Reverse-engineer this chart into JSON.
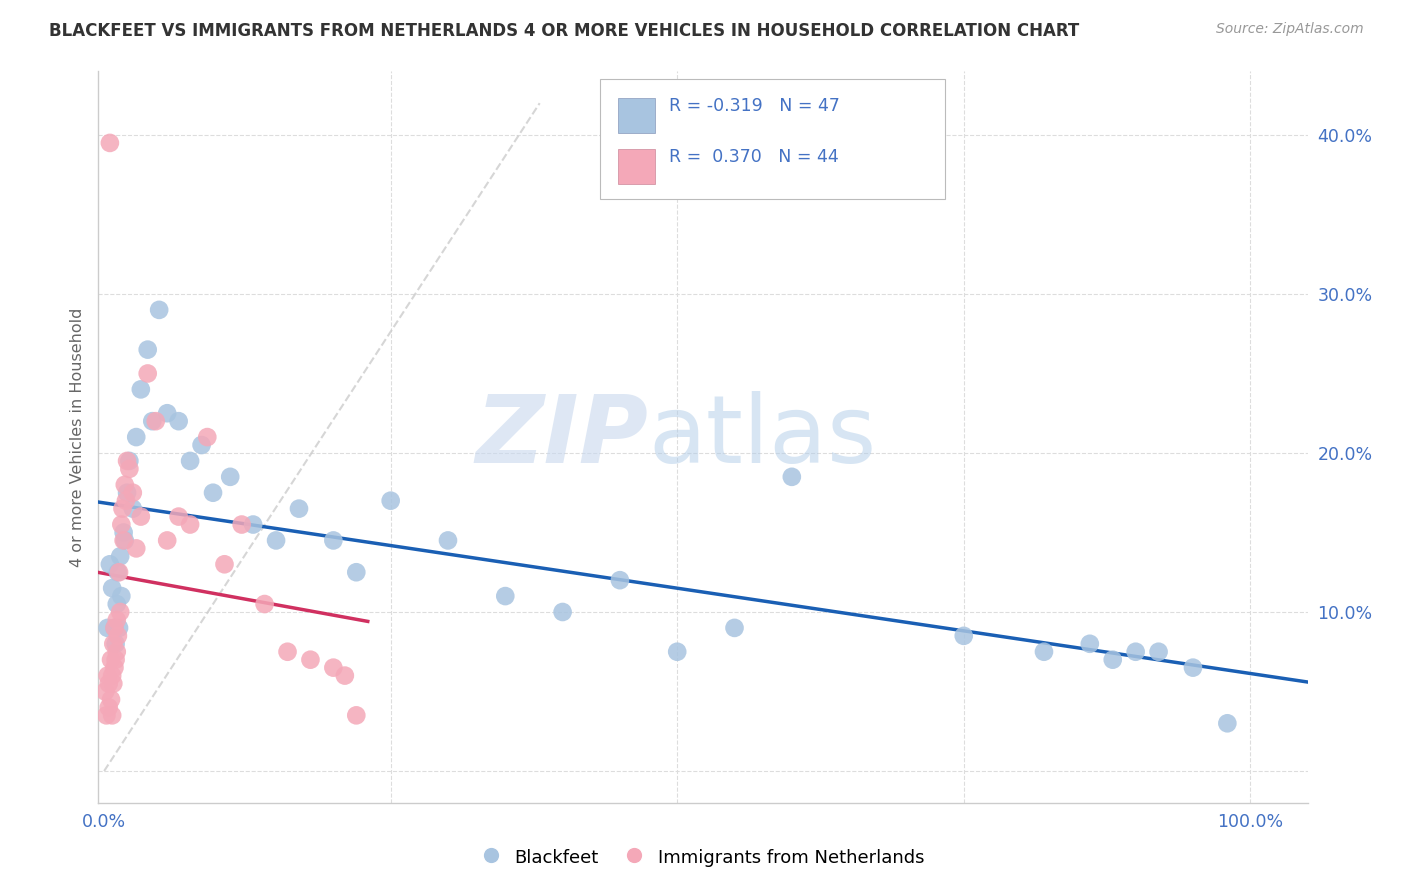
{
  "title": "BLACKFEET VS IMMIGRANTS FROM NETHERLANDS 4 OR MORE VEHICLES IN HOUSEHOLD CORRELATION CHART",
  "source": "Source: ZipAtlas.com",
  "ylabel": "4 or more Vehicles in Household",
  "xlim": [
    -0.005,
    1.05
  ],
  "ylim": [
    -0.02,
    0.44
  ],
  "y_ticks": [
    0.0,
    0.1,
    0.2,
    0.3,
    0.4
  ],
  "y_tick_labels": [
    "",
    "10.0%",
    "20.0%",
    "30.0%",
    "40.0%"
  ],
  "x_ticks": [
    0.0,
    0.25,
    0.5,
    0.75,
    1.0
  ],
  "x_tick_labels": [
    "0.0%",
    "",
    "",
    "",
    "100.0%"
  ],
  "legend_label1": "Blackfeet",
  "legend_label2": "Immigrants from Netherlands",
  "R1": "-0.319",
  "N1": "47",
  "R2": "0.370",
  "N2": "44",
  "color_blue": "#a8c4e0",
  "color_pink": "#f4a8b8",
  "line_blue": "#1a5fb4",
  "line_pink": "#d03060",
  "tick_color": "#4472c4",
  "blue_x": [
    0.003,
    0.005,
    0.007,
    0.009,
    0.01,
    0.011,
    0.012,
    0.013,
    0.014,
    0.015,
    0.017,
    0.018,
    0.02,
    0.022,
    0.025,
    0.028,
    0.032,
    0.038,
    0.042,
    0.048,
    0.055,
    0.065,
    0.075,
    0.085,
    0.095,
    0.11,
    0.13,
    0.15,
    0.17,
    0.2,
    0.22,
    0.25,
    0.3,
    0.35,
    0.4,
    0.45,
    0.5,
    0.55,
    0.6,
    0.75,
    0.82,
    0.86,
    0.88,
    0.9,
    0.92,
    0.95,
    0.98
  ],
  "blue_y": [
    0.09,
    0.13,
    0.115,
    0.09,
    0.08,
    0.105,
    0.125,
    0.09,
    0.135,
    0.11,
    0.15,
    0.145,
    0.175,
    0.195,
    0.165,
    0.21,
    0.24,
    0.265,
    0.22,
    0.29,
    0.225,
    0.22,
    0.195,
    0.205,
    0.175,
    0.185,
    0.155,
    0.145,
    0.165,
    0.145,
    0.125,
    0.17,
    0.145,
    0.11,
    0.1,
    0.12,
    0.075,
    0.09,
    0.185,
    0.085,
    0.075,
    0.08,
    0.07,
    0.075,
    0.075,
    0.065,
    0.03
  ],
  "pink_x": [
    0.001,
    0.002,
    0.003,
    0.004,
    0.004,
    0.005,
    0.006,
    0.006,
    0.007,
    0.007,
    0.008,
    0.008,
    0.009,
    0.009,
    0.01,
    0.011,
    0.011,
    0.012,
    0.013,
    0.014,
    0.015,
    0.016,
    0.017,
    0.018,
    0.019,
    0.02,
    0.022,
    0.025,
    0.028,
    0.032,
    0.038,
    0.045,
    0.055,
    0.065,
    0.075,
    0.09,
    0.105,
    0.12,
    0.14,
    0.16,
    0.18,
    0.2,
    0.21,
    0.22
  ],
  "pink_y": [
    0.05,
    0.035,
    0.06,
    0.04,
    0.055,
    0.395,
    0.045,
    0.07,
    0.035,
    0.06,
    0.055,
    0.08,
    0.065,
    0.09,
    0.07,
    0.075,
    0.095,
    0.085,
    0.125,
    0.1,
    0.155,
    0.165,
    0.145,
    0.18,
    0.17,
    0.195,
    0.19,
    0.175,
    0.14,
    0.16,
    0.25,
    0.22,
    0.145,
    0.16,
    0.155,
    0.21,
    0.13,
    0.155,
    0.105,
    0.075,
    0.07,
    0.065,
    0.06,
    0.035
  ]
}
